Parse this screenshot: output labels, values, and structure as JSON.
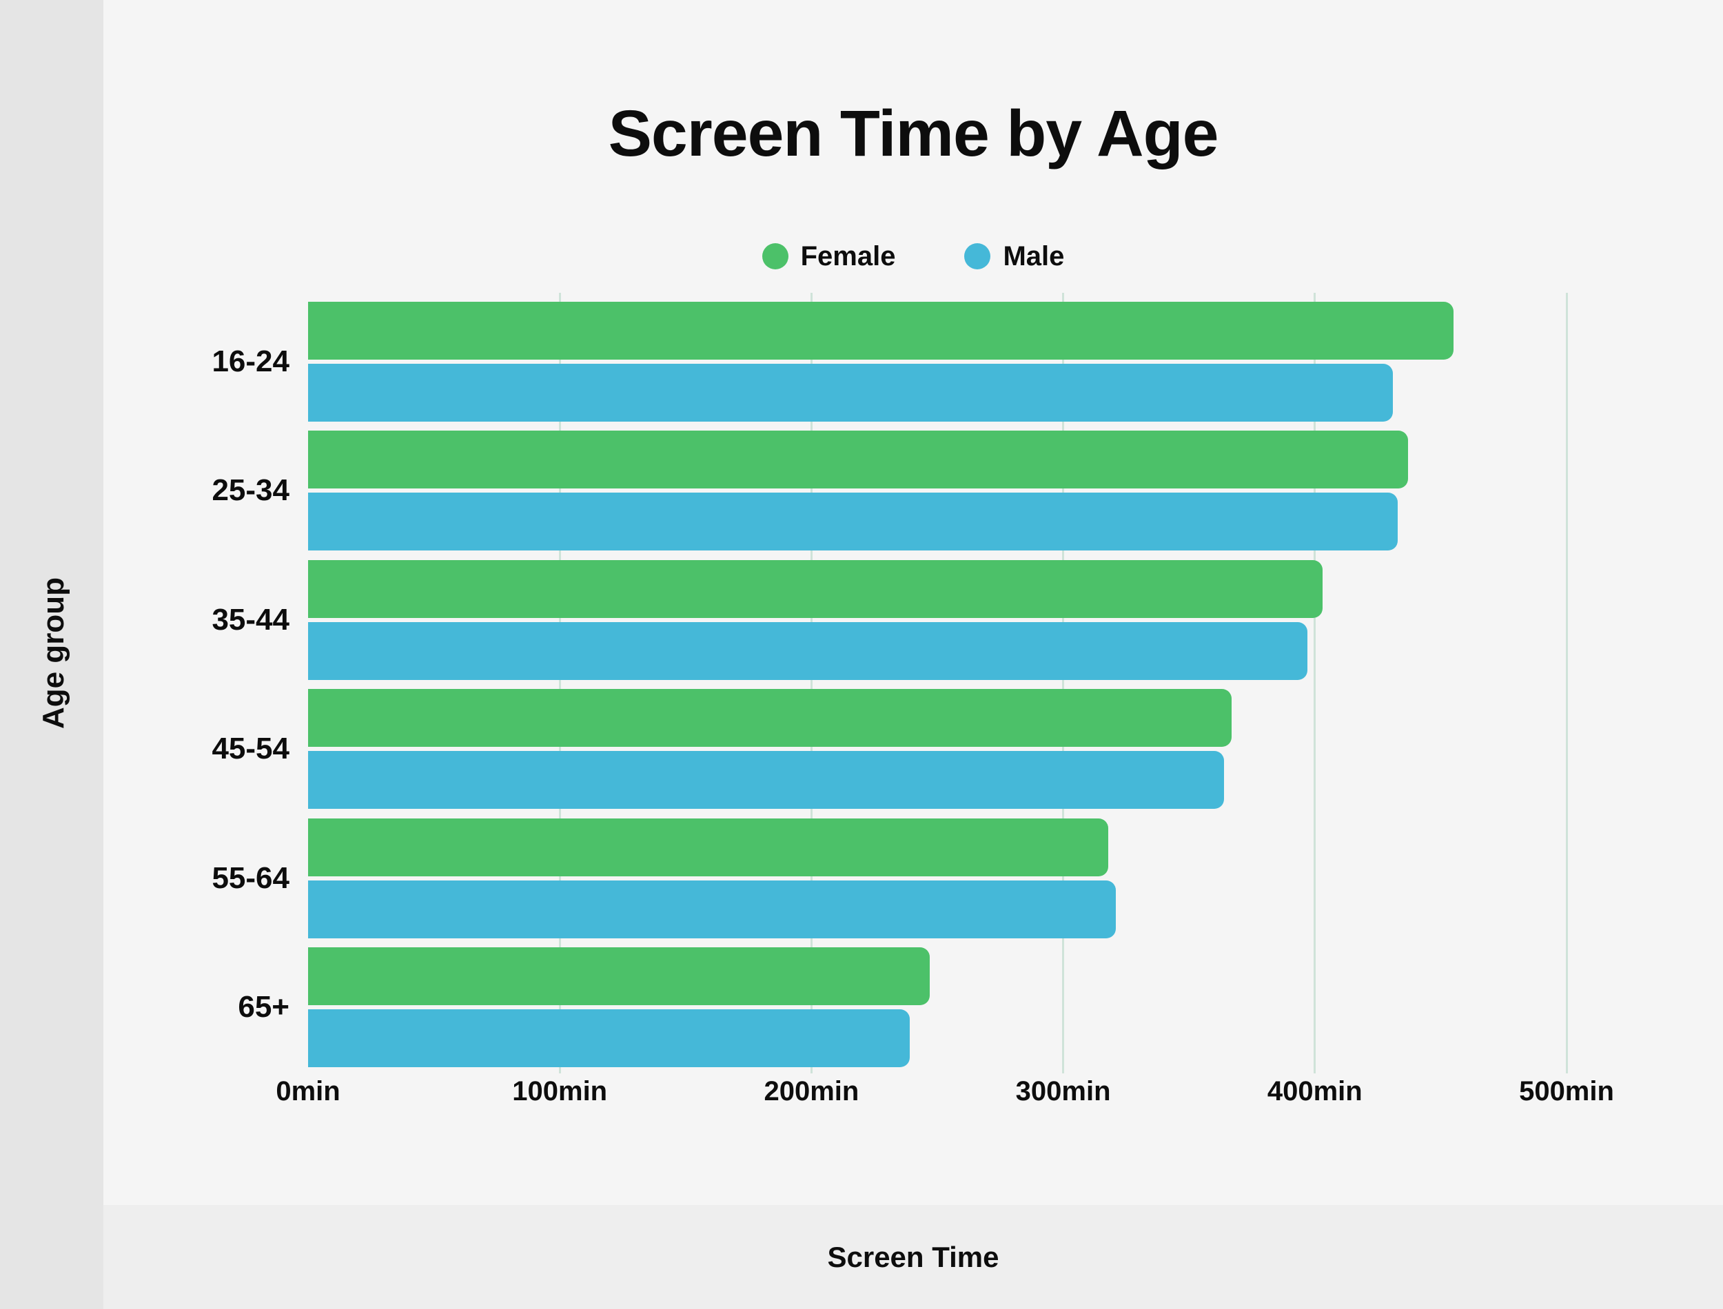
{
  "chart_data": {
    "type": "bar",
    "orientation": "horizontal",
    "title": "Screen Time by Age",
    "xlabel": "Screen Time",
    "ylabel": "Age group",
    "categories": [
      "16-24",
      "25-34",
      "35-44",
      "45-54",
      "55-64",
      "65+"
    ],
    "series": [
      {
        "name": "Female",
        "color": "#4cc169",
        "values": [
          455,
          437,
          403,
          367,
          318,
          247
        ]
      },
      {
        "name": "Male",
        "color": "#45b8d8",
        "values": [
          431,
          433,
          397,
          364,
          321,
          239
        ]
      }
    ],
    "x_ticks": [
      "0min",
      "100min",
      "200min",
      "300min",
      "400min",
      "500min"
    ],
    "xlim": [
      0,
      500
    ],
    "grid": true,
    "legend_position": "top",
    "unit": "min"
  },
  "colors": {
    "background": "#f5f5f5",
    "sidebar": "#e5e5e5",
    "bottom_band": "#eeeeee",
    "gridline": "#cfe3d9",
    "text": "#0d0d0d"
  }
}
